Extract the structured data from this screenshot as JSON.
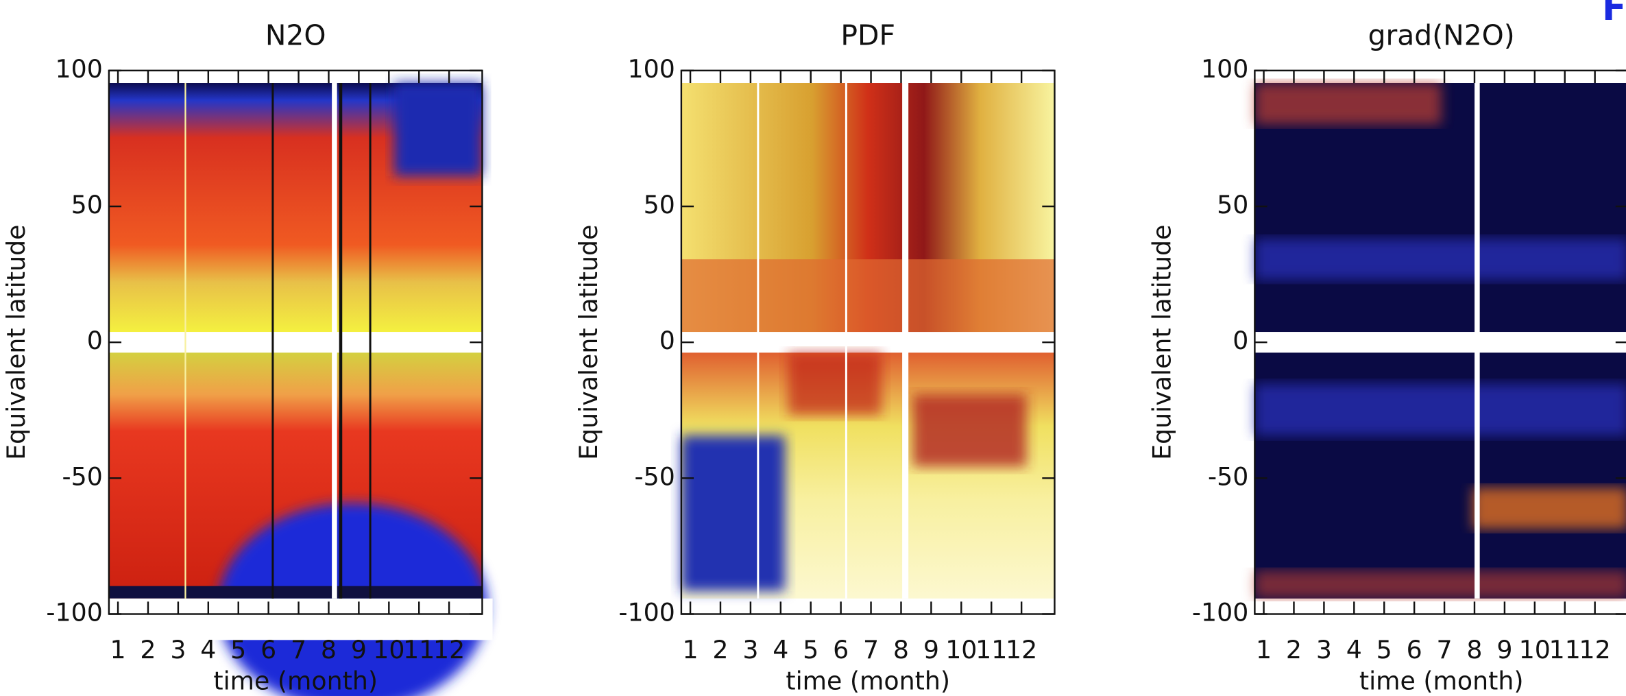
{
  "chart_data": [
    {
      "type": "heatmap",
      "title": "N2O",
      "xlabel": "time (month)",
      "ylabel": "Equivalent latitude",
      "xlim": [
        0.7,
        13.1
      ],
      "xticks": [
        1,
        2,
        3,
        4,
        5,
        6,
        7,
        8,
        9,
        10,
        11,
        12
      ],
      "ylim": [
        -100,
        100
      ],
      "yticks": [
        -100,
        -50,
        0,
        50,
        100
      ]
    },
    {
      "type": "heatmap",
      "title": "PDF",
      "xlabel": "time (month)",
      "ylabel": "Equivalent latitude",
      "xlim": [
        0.7,
        13.1
      ],
      "xticks": [
        1,
        2,
        3,
        4,
        5,
        6,
        7,
        8,
        9,
        10,
        11,
        12
      ],
      "ylim": [
        -100,
        100
      ],
      "yticks": [
        -100,
        -50,
        0,
        50,
        100
      ]
    },
    {
      "type": "heatmap",
      "title": "grad(N2O)",
      "xlabel": "time (month)",
      "ylabel": "Equivalent latitude",
      "xlim": [
        0.7,
        13.1
      ],
      "xticks": [
        1,
        2,
        3,
        4,
        5,
        6,
        7,
        8,
        9,
        10,
        11,
        12
      ],
      "ylim": [
        -100,
        100
      ],
      "yticks": [
        -100,
        -50,
        0,
        50,
        100
      ]
    }
  ]
}
